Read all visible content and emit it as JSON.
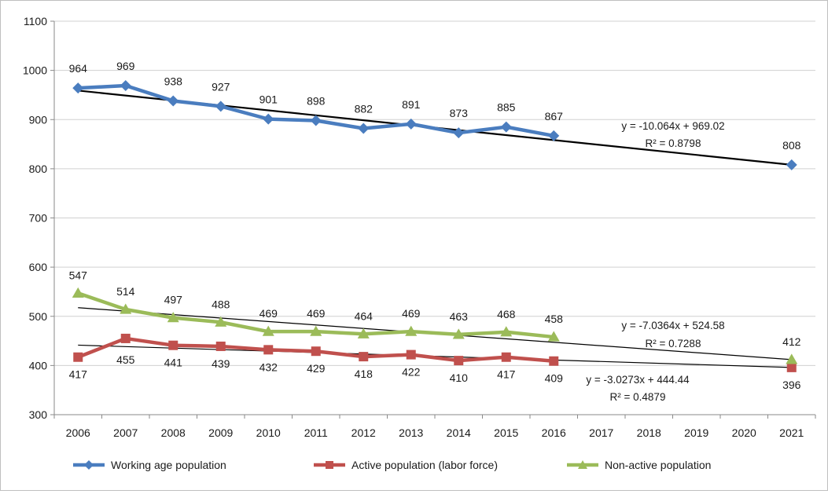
{
  "chart_data": {
    "type": "line",
    "title": "",
    "xlabel": "",
    "ylabel": "",
    "ylim": [
      300,
      1100
    ],
    "yticks": [
      300,
      400,
      500,
      600,
      700,
      800,
      900,
      1000,
      1100
    ],
    "categories": [
      "2006",
      "2007",
      "2008",
      "2009",
      "2010",
      "2011",
      "2012",
      "2013",
      "2014",
      "2015",
      "2016",
      "2017",
      "2018",
      "2019",
      "2020",
      "2021"
    ],
    "grid": "horizontal",
    "legend_position": "bottom",
    "series": [
      {
        "name": "Working age population",
        "color": "#4a7dbf",
        "marker": "diamond",
        "values": [
          964,
          969,
          938,
          927,
          901,
          898,
          882,
          891,
          873,
          885,
          867,
          null,
          null,
          null,
          null,
          808
        ],
        "labels": [
          "964",
          "969",
          "938",
          "927",
          "901",
          "898",
          "882",
          "891",
          "873",
          "885",
          "867",
          "",
          "",
          "",
          "",
          "808"
        ],
        "trendline": {
          "slope": -10.064,
          "intercept": 969.02,
          "equation": "y = -10.064x + 969.02",
          "r2": "R² = 0.8798",
          "color": "#000000"
        }
      },
      {
        "name": "Active population (labor force)",
        "color": "#c0504d",
        "marker": "square",
        "values": [
          417,
          455,
          441,
          439,
          432,
          429,
          418,
          422,
          410,
          417,
          409,
          null,
          null,
          null,
          null,
          396
        ],
        "labels": [
          "417",
          "455",
          "441",
          "439",
          "432",
          "429",
          "418",
          "422",
          "410",
          "417",
          "409",
          "",
          "",
          "",
          "",
          "396"
        ],
        "trendline": {
          "slope": -3.0273,
          "intercept": 444.44,
          "equation": "y = -3.0273x + 444.44",
          "r2": "R² = 0.4879",
          "color": "#000000"
        }
      },
      {
        "name": "Non-active population",
        "color": "#9bbb59",
        "marker": "triangle",
        "values": [
          547,
          514,
          497,
          488,
          469,
          469,
          464,
          469,
          463,
          468,
          458,
          null,
          null,
          null,
          null,
          412
        ],
        "labels": [
          "547",
          "514",
          "497",
          "488",
          "469",
          "469",
          "464",
          "469",
          "463",
          "468",
          "458",
          "",
          "",
          "",
          "",
          "412"
        ],
        "trendline": {
          "slope": -7.0364,
          "intercept": 524.58,
          "equation": "y = -7.0364x + 524.58",
          "r2": "R² = 0.7288",
          "color": "#000000"
        }
      }
    ]
  }
}
